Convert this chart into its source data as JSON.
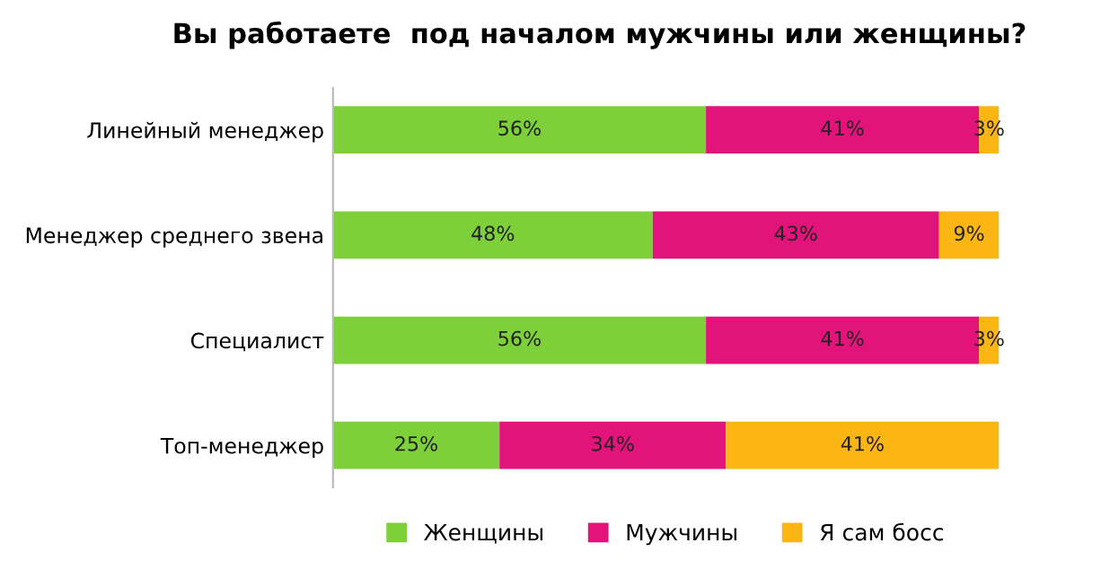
{
  "chart_data": {
    "type": "bar",
    "orientation": "horizontal",
    "stacked": true,
    "title": "Вы работаете  под началом мужчины или женщины?",
    "categories": [
      "Линейный менеджер",
      "Менеджер среднего звена",
      "Специалист",
      "Топ-менеджер"
    ],
    "series": [
      {
        "name": "Женщины",
        "color": "#7ed03b",
        "values": [
          56,
          48,
          56,
          25
        ],
        "value_labels": [
          "56%",
          "48%",
          "56%",
          "25%"
        ]
      },
      {
        "name": "Мужчины",
        "color": "#e2137a",
        "values": [
          41,
          43,
          41,
          34
        ],
        "value_labels": [
          "41%",
          "43%",
          "41%",
          "34%"
        ]
      },
      {
        "name": "Я сам босс",
        "color": "#fbb613",
        "values": [
          3,
          9,
          3,
          41
        ],
        "value_labels": [
          "3%",
          "9%",
          "3%",
          "41%"
        ]
      }
    ],
    "tick_labels": "y",
    "legend": "bottom",
    "grid": false
  }
}
